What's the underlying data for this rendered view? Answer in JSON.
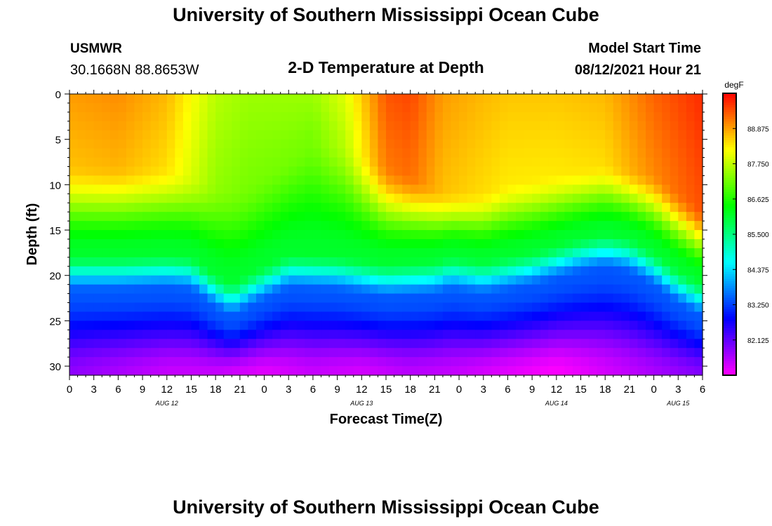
{
  "header": {
    "title": "University of Southern Mississippi Ocean Cube",
    "station": "USMWR",
    "coords": "30.1668N  88.8653W",
    "model_label": "Model Start Time",
    "model_time": "08/12/2021 Hour 21"
  },
  "footer": {
    "title": "University of Southern Mississippi Ocean Cube"
  },
  "chart_data": {
    "type": "heatmap",
    "title": "2-D Temperature at Depth",
    "xlabel": "Forecast Time(Z)",
    "ylabel": "Depth (ft)",
    "units": "degF",
    "x_range_hours": [
      0,
      78
    ],
    "y_range_ft": [
      0,
      31
    ],
    "x_tick_labels": [
      "0",
      "3",
      "6",
      "9",
      "12",
      "15",
      "18",
      "21",
      "0",
      "3",
      "6",
      "9",
      "12",
      "15",
      "18",
      "21",
      "0",
      "3",
      "6",
      "9",
      "12",
      "15",
      "18",
      "21",
      "0",
      "3",
      "6"
    ],
    "x_tick_step_hours": 3,
    "date_labels": [
      {
        "text": "AUG 12",
        "hour": 12
      },
      {
        "text": "AUG 13",
        "hour": 36
      },
      {
        "text": "AUG 14",
        "hour": 60
      },
      {
        "text": "AUG 15",
        "hour": 75
      }
    ],
    "y_ticks": [
      0,
      5,
      10,
      15,
      20,
      25,
      30
    ],
    "colorbar": {
      "min": 81.0,
      "max": 90.0,
      "labels": [
        "88.875",
        "87.750",
        "86.625",
        "85.500",
        "84.375",
        "83.250",
        "82.125"
      ],
      "label_values": [
        88.875,
        87.75,
        86.625,
        85.5,
        84.375,
        83.25,
        82.125
      ]
    },
    "surface_temp_by_hour": {
      "hours": [
        0,
        6,
        12,
        18,
        22,
        26,
        30,
        34,
        39,
        42,
        46,
        51,
        54,
        60,
        66,
        72,
        78
      ],
      "values": [
        88.9,
        89.0,
        88.7,
        87.7,
        87.5,
        87.5,
        87.5,
        88.0,
        89.4,
        89.5,
        88.9,
        88.7,
        88.6,
        88.6,
        88.7,
        89.3,
        89.7
      ]
    },
    "mixed_layer_depth_by_hour": {
      "hours": [
        0,
        6,
        12,
        18,
        22,
        26,
        30,
        34,
        39,
        42,
        46,
        51,
        54,
        60,
        66,
        72,
        78
      ],
      "values": [
        7.5,
        7.5,
        7.5,
        9.5,
        9.5,
        7,
        4,
        4.5,
        7.5,
        8.5,
        10.5,
        10.5,
        9.5,
        8.5,
        7.5,
        8.5,
        12.5
      ]
    },
    "thermocline_depth_by_hour": {
      "hours": [
        0,
        6,
        12,
        15,
        18,
        20,
        23,
        27,
        33,
        39,
        45,
        47,
        51,
        57,
        63,
        66,
        69,
        72,
        75,
        78
      ],
      "values": [
        18.5,
        18.5,
        18.3,
        18.5,
        20.5,
        21.5,
        20.0,
        18.3,
        18.5,
        19.3,
        19.0,
        18.5,
        19.0,
        18.0,
        16.5,
        16.0,
        16.5,
        18.0,
        20.0,
        21.5
      ]
    },
    "bottom_temp_by_hour": {
      "hours": [
        0,
        12,
        18,
        24,
        30,
        36,
        42,
        48,
        54,
        60,
        66,
        72,
        78
      ],
      "values": [
        81.8,
        81.4,
        81.4,
        81.2,
        81.4,
        81.3,
        81.5,
        81.4,
        81.2,
        81.0,
        81.3,
        81.6,
        81.9
      ]
    }
  }
}
